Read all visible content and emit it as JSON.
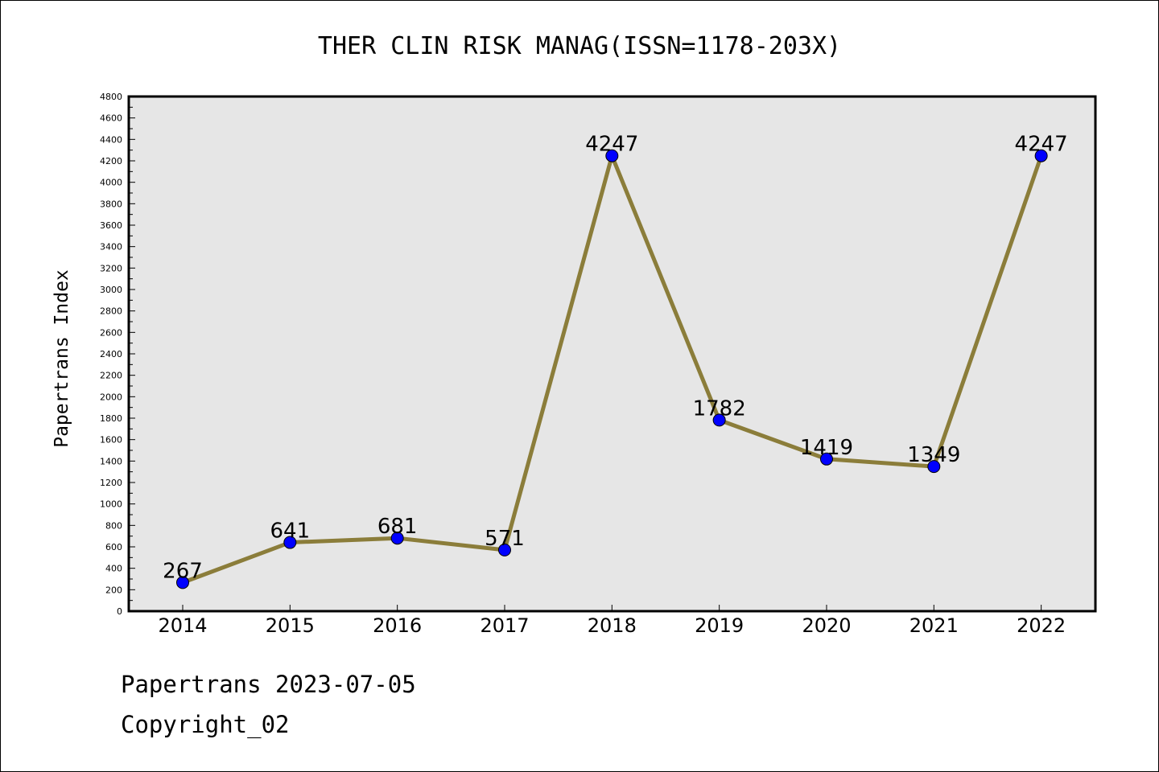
{
  "chart_data": {
    "type": "line",
    "title": "THER CLIN RISK MANAG(ISSN=1178-203X)",
    "xlabel": "",
    "ylabel": "Papertrans Index",
    "categories": [
      "2014",
      "2015",
      "2016",
      "2017",
      "2018",
      "2019",
      "2020",
      "2021",
      "2022"
    ],
    "values": [
      267,
      641,
      681,
      571,
      4247,
      1782,
      1419,
      1349,
      4247
    ],
    "data_labels": [
      "267",
      "641",
      "681",
      "571",
      "4247",
      "1782",
      "1419",
      "1349",
      "4247"
    ],
    "ylim": [
      0,
      4800
    ],
    "yticks": [
      0,
      200,
      400,
      600,
      800,
      1000,
      1200,
      1400,
      1600,
      1800,
      2000,
      2200,
      2400,
      2600,
      2800,
      3000,
      3200,
      3400,
      3600,
      3800,
      4000,
      4200,
      4400,
      4600,
      4800
    ],
    "grid": false,
    "legend": "none",
    "colors": {
      "line": "#8B7D3A",
      "marker": "#0000FF",
      "plot_background": "#E6E6E6",
      "page_background": "#FFFFFF"
    }
  },
  "footer": {
    "line1": "Papertrans 2023-07-05",
    "line2": "Copyright_02"
  }
}
